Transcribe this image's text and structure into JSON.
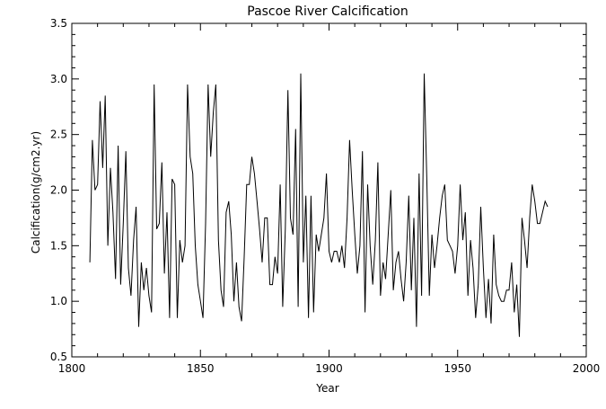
{
  "chart_data": {
    "type": "line",
    "title": "Pascoe River Calcification",
    "xlabel": "Year",
    "ylabel": "Calcification(g/cm2.yr)",
    "xlim": [
      1800,
      2000
    ],
    "ylim": [
      0.5,
      3.5
    ],
    "grid": false,
    "x_ticks": [
      "1800",
      "1850",
      "1900",
      "1950",
      "2000"
    ],
    "y_ticks": [
      "0.5",
      "1.0",
      "1.5",
      "2.0",
      "2.5",
      "3.0",
      "3.5"
    ],
    "series": [
      {
        "color": "#000000",
        "x": [
          1807,
          1808,
          1809,
          1810,
          1811,
          1812,
          1813,
          1814,
          1815,
          1816,
          1817,
          1818,
          1819,
          1820,
          1821,
          1822,
          1823,
          1824,
          1825,
          1826,
          1827,
          1828,
          1829,
          1830,
          1831,
          1832,
          1833,
          1834,
          1835,
          1836,
          1837,
          1838,
          1839,
          1840,
          1841,
          1842,
          1843,
          1844,
          1845,
          1846,
          1847,
          1848,
          1849,
          1850,
          1851,
          1852,
          1853,
          1854,
          1855,
          1856,
          1857,
          1858,
          1859,
          1860,
          1861,
          1862,
          1863,
          1864,
          1865,
          1866,
          1867,
          1868,
          1869,
          1870,
          1871,
          1872,
          1873,
          1874,
          1875,
          1876,
          1877,
          1878,
          1879,
          1880,
          1881,
          1882,
          1883,
          1884,
          1885,
          1886,
          1887,
          1888,
          1889,
          1890,
          1891,
          1892,
          1893,
          1894,
          1895,
          1896,
          1897,
          1898,
          1899,
          1900,
          1901,
          1902,
          1903,
          1904,
          1905,
          1906,
          1907,
          1908,
          1909,
          1910,
          1911,
          1912,
          1913,
          1914,
          1915,
          1916,
          1917,
          1918,
          1919,
          1920,
          1921,
          1922,
          1923,
          1924,
          1925,
          1926,
          1927,
          1928,
          1929,
          1930,
          1931,
          1932,
          1933,
          1934,
          1935,
          1936,
          1937,
          1938,
          1939,
          1940,
          1941,
          1942,
          1943,
          1944,
          1945,
          1946,
          1947,
          1948,
          1949,
          1950,
          1951,
          1952,
          1953,
          1954,
          1955,
          1956,
          1957,
          1958,
          1959,
          1960,
          1961,
          1962,
          1963,
          1964,
          1965,
          1966,
          1967,
          1968,
          1969,
          1970,
          1971,
          1972,
          1973,
          1974,
          1975,
          1976,
          1977,
          1978,
          1979,
          1980,
          1981,
          1982,
          1983,
          1984,
          1985
        ],
        "values": [
          1.35,
          2.45,
          2.0,
          2.05,
          2.8,
          2.2,
          2.85,
          1.5,
          2.2,
          1.8,
          1.2,
          2.4,
          1.15,
          1.7,
          2.35,
          1.3,
          1.05,
          1.55,
          1.85,
          0.77,
          1.35,
          1.1,
          1.3,
          1.05,
          0.9,
          2.95,
          1.65,
          1.7,
          2.25,
          1.25,
          1.8,
          0.85,
          2.1,
          2.05,
          0.85,
          1.55,
          1.35,
          1.5,
          2.95,
          2.3,
          2.15,
          1.5,
          1.15,
          1.0,
          0.85,
          1.7,
          2.95,
          2.3,
          2.7,
          2.95,
          1.55,
          1.1,
          0.95,
          1.8,
          1.9,
          1.6,
          1.0,
          1.35,
          0.95,
          0.82,
          1.4,
          2.05,
          2.05,
          2.3,
          2.15,
          1.9,
          1.65,
          1.35,
          1.75,
          1.75,
          1.15,
          1.15,
          1.4,
          1.25,
          2.05,
          0.95,
          1.65,
          2.9,
          1.75,
          1.6,
          2.55,
          0.95,
          3.05,
          1.35,
          1.95,
          0.85,
          1.95,
          0.9,
          1.6,
          1.45,
          1.6,
          1.75,
          2.15,
          1.45,
          1.35,
          1.45,
          1.45,
          1.35,
          1.5,
          1.3,
          1.75,
          2.45,
          2.0,
          1.6,
          1.25,
          1.5,
          2.35,
          0.9,
          2.05,
          1.5,
          1.15,
          1.55,
          2.25,
          1.05,
          1.35,
          1.2,
          1.6,
          2.0,
          1.1,
          1.35,
          1.45,
          1.2,
          1.0,
          1.35,
          1.95,
          1.1,
          1.75,
          0.77,
          2.15,
          1.05,
          3.05,
          2.1,
          1.05,
          1.6,
          1.3,
          1.5,
          1.75,
          1.95,
          2.05,
          1.55,
          1.5,
          1.45,
          1.25,
          1.5,
          2.05,
          1.55,
          1.8,
          1.05,
          1.55,
          1.3,
          0.85,
          1.15,
          1.85,
          1.3,
          0.85,
          1.2,
          0.8,
          1.6,
          1.15,
          1.05,
          1.0,
          1.0,
          1.1,
          1.1,
          1.35,
          0.9,
          1.15,
          0.68,
          1.75,
          1.55,
          1.3,
          1.75,
          2.05,
          1.9,
          1.7,
          1.7,
          1.8,
          1.9,
          1.85
        ]
      }
    ]
  }
}
